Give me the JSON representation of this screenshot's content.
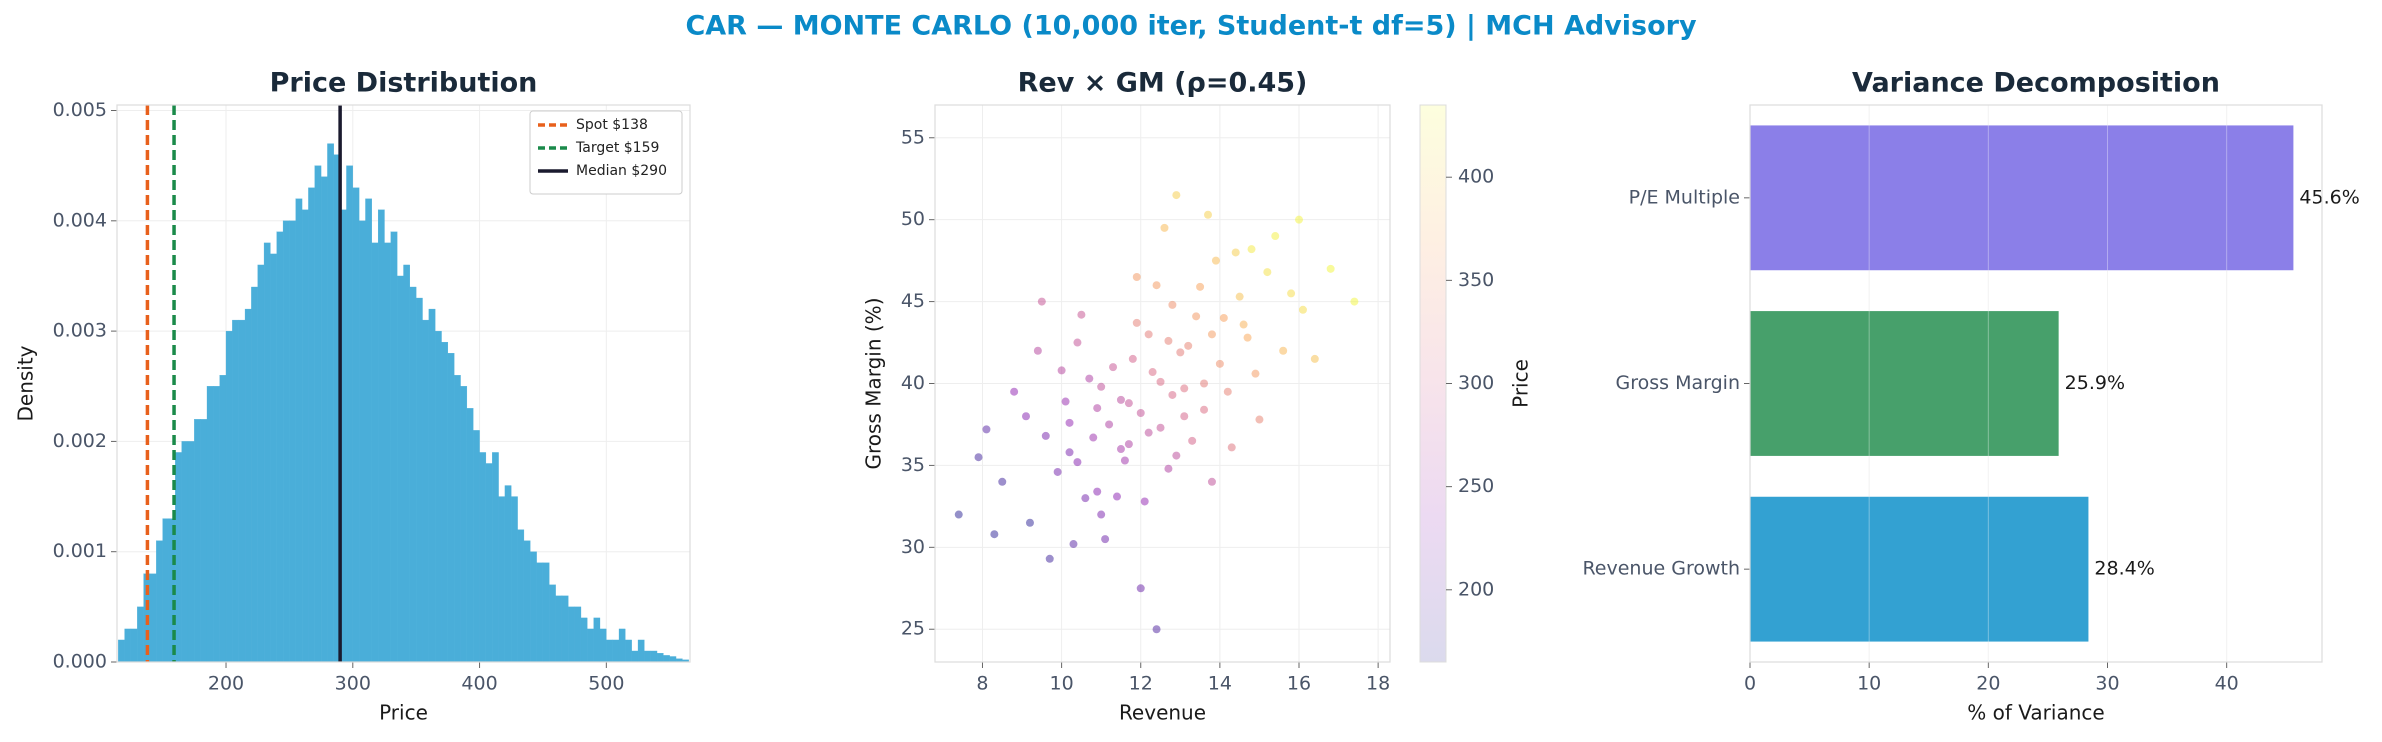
{
  "suptitle": "CAR — MONTE CARLO (10,000 iter, Student-t df=5) | MCH Advisory",
  "chart_data": [
    {
      "type": "histogram",
      "title": "Price Distribution",
      "xlabel": "Price",
      "ylabel": "Density",
      "color": "#4aaed9",
      "bins": [
        115,
        120,
        125,
        130,
        135,
        140,
        145,
        150,
        155,
        160,
        165,
        170,
        175,
        180,
        185,
        190,
        195,
        200,
        205,
        210,
        215,
        220,
        225,
        230,
        235,
        240,
        245,
        250,
        255,
        260,
        265,
        270,
        275,
        280,
        285,
        290,
        295,
        300,
        305,
        310,
        315,
        320,
        325,
        330,
        335,
        340,
        345,
        350,
        355,
        360,
        365,
        370,
        375,
        380,
        385,
        390,
        395,
        400,
        405,
        410,
        415,
        420,
        425,
        430,
        435,
        440,
        445,
        450,
        455,
        460,
        465,
        470,
        475,
        480,
        485,
        490,
        495,
        500,
        505,
        510,
        515,
        520,
        525,
        530,
        535,
        540,
        545,
        550,
        555,
        560,
        565
      ],
      "values": [
        0.0002,
        0.0003,
        0.0003,
        0.0005,
        0.0008,
        0.0008,
        0.0011,
        0.0013,
        0.0013,
        0.0019,
        0.002,
        0.002,
        0.0022,
        0.0022,
        0.0025,
        0.0025,
        0.0026,
        0.003,
        0.0031,
        0.0031,
        0.0032,
        0.0034,
        0.0036,
        0.0038,
        0.0037,
        0.0039,
        0.004,
        0.004,
        0.0042,
        0.0041,
        0.0043,
        0.0045,
        0.0044,
        0.0047,
        0.0046,
        0.0041,
        0.0045,
        0.0043,
        0.004,
        0.0042,
        0.0038,
        0.0041,
        0.0038,
        0.0039,
        0.0035,
        0.0036,
        0.0034,
        0.0033,
        0.0031,
        0.0032,
        0.003,
        0.0029,
        0.0028,
        0.0026,
        0.0025,
        0.0023,
        0.0021,
        0.0019,
        0.0018,
        0.0019,
        0.0015,
        0.0016,
        0.0015,
        0.0012,
        0.0011,
        0.001,
        0.0009,
        0.0009,
        0.0007,
        0.0006,
        0.0006,
        0.0005,
        0.0005,
        0.0004,
        0.0003,
        0.0004,
        0.0003,
        0.0002,
        0.0002,
        0.0003,
        0.0002,
        0.0001,
        0.0002,
        0.0001,
        0.0001,
        8e-05,
        6e-05,
        5e-05,
        3e-05,
        2e-05
      ],
      "xlim": [
        114,
        566
      ],
      "xticks": [
        200,
        300,
        400,
        500
      ],
      "ylim": [
        0,
        0.00505
      ],
      "yticks": [
        {
          "value": 0,
          "label": "0.000"
        },
        {
          "value": 0.001,
          "label": "0.001"
        },
        {
          "value": 0.002,
          "label": "0.002"
        },
        {
          "value": 0.003,
          "label": "0.003"
        },
        {
          "value": 0.004,
          "label": "0.004"
        },
        {
          "value": 0.005,
          "label": "0.005"
        }
      ],
      "grid": true,
      "legend": "upper right",
      "reference_lines": [
        {
          "name": "Spot $138",
          "value": 138,
          "color": "#e8601c",
          "style": "dashed"
        },
        {
          "name": "Target $159",
          "value": 159,
          "color": "#1a8a4a",
          "style": "dashed"
        },
        {
          "name": "Median $290",
          "value": 290,
          "color": "#1a1a2e",
          "style": "solid"
        }
      ]
    },
    {
      "type": "scatter",
      "title": "Rev × GM (ρ=0.45)",
      "xlabel": "Revenue",
      "ylabel": "Gross Margin (%)",
      "colorbar_label": "Price",
      "cmap": "plasma",
      "clim": [
        165,
        435
      ],
      "cticks": [
        200,
        250,
        300,
        350,
        400
      ],
      "xlim": [
        6.8,
        18.3
      ],
      "xticks": [
        8,
        10,
        12,
        14,
        16,
        18
      ],
      "ylim": [
        23,
        57
      ],
      "yticks": [
        25,
        30,
        35,
        40,
        45,
        50,
        55
      ],
      "grid": true,
      "x": [
        11.2,
        12.5,
        10.4,
        13.8,
        9.6,
        12.0,
        14.5,
        11.8,
        10.9,
        13.1,
        8.5,
        15.2,
        12.7,
        11.5,
        10.1,
        14.0,
        9.2,
        13.4,
        12.2,
        11.0,
        16.1,
        10.7,
        12.9,
        14.8,
        11.9,
        9.9,
        13.6,
        8.1,
        12.4,
        10.3,
        15.6,
        11.4,
        13.0,
        7.4,
        14.2,
        12.6,
        10.8,
        16.8,
        11.7,
        13.3,
        9.4,
        12.1,
        14.6,
        10.5,
        13.9,
        11.1,
        15.0,
        12.3,
        8.8,
        13.7,
        10.2,
        12.8,
        11.6,
        14.3,
        9.7,
        13.2,
        17.4,
        11.3,
        12.0,
        15.4,
        10.6,
        13.5,
        7.9,
        12.5,
        14.9,
        11.9,
        10.0,
        13.8,
        9.1,
        12.2,
        16.4,
        11.0,
        14.1,
        12.9,
        10.4,
        15.8,
        11.5,
        13.6,
        8.3,
        12.7,
        14.4,
        10.9,
        12.4,
        9.5,
        13.1,
        16.0,
        11.7,
        14.7,
        10.2,
        12.8
      ],
      "y": [
        37.5,
        40.1,
        35.2,
        43.0,
        36.8,
        38.2,
        45.3,
        41.5,
        33.4,
        39.7,
        34.0,
        46.8,
        42.6,
        36.0,
        38.9,
        41.2,
        31.5,
        44.1,
        37.0,
        39.8,
        44.5,
        40.3,
        35.6,
        48.2,
        43.7,
        34.6,
        38.4,
        37.2,
        46.0,
        30.2,
        42.0,
        33.1,
        41.9,
        32.0,
        39.5,
        49.5,
        36.7,
        47.0,
        38.8,
        36.5,
        42.0,
        32.8,
        43.6,
        44.2,
        47.5,
        30.5,
        37.8,
        40.7,
        39.5,
        50.3,
        37.6,
        44.8,
        35.3,
        36.1,
        29.3,
        42.3,
        45.0,
        41.0,
        27.5,
        49.0,
        33.0,
        45.9,
        35.5,
        37.3,
        40.6,
        46.5,
        40.8,
        34.0,
        38.0,
        43.0,
        41.5,
        32.0,
        44.0,
        51.5,
        42.5,
        45.5,
        39.0,
        40.0,
        30.8,
        34.8,
        48.0,
        38.5,
        25.0,
        45.0,
        38.0,
        50.0,
        36.3,
        42.8,
        35.8,
        39.3
      ],
      "c": [
        262,
        309,
        226,
        359,
        217,
        283,
        389,
        300,
        227,
        315,
        180,
        415,
        331,
        253,
        241,
        347,
        170,
        355,
        276,
        279,
        412,
        261,
        275,
        423,
        330,
        214,
        312,
        196,
        358,
        196,
        382,
        231,
        327,
        168,
        333,
        384,
        244,
        432,
        283,
        302,
        270,
        236,
        378,
        287,
        386,
        210,
        334,
        309,
        234,
        401,
        236,
        347,
        248,
        319,
        180,
        334,
        431,
        286,
        208,
        427,
        214,
        366,
        181,
        283,
        358,
        355,
        270,
        279,
        226,
        326,
        390,
        220,
        364,
        400,
        283,
        412,
        273,
        327,
        170,
        263,
        400,
        263,
        190,
        285,
        302,
        430,
        262,
        371,
        219,
        306
      ]
    },
    {
      "type": "barh",
      "title": "Variance Decomposition",
      "xlabel": "% of Variance",
      "categories": [
        "Revenue Growth",
        "Gross Margin",
        "P/E Multiple"
      ],
      "values": [
        28.4,
        25.9,
        45.6
      ],
      "value_labels": [
        "28.4%",
        "25.9%",
        "45.6%"
      ],
      "colors": [
        "#33a1d2",
        "#47a06b",
        "#8b7fe8"
      ],
      "xlim": [
        0,
        48
      ],
      "xticks": [
        0,
        10,
        20,
        30,
        40
      ],
      "grid": true
    }
  ]
}
